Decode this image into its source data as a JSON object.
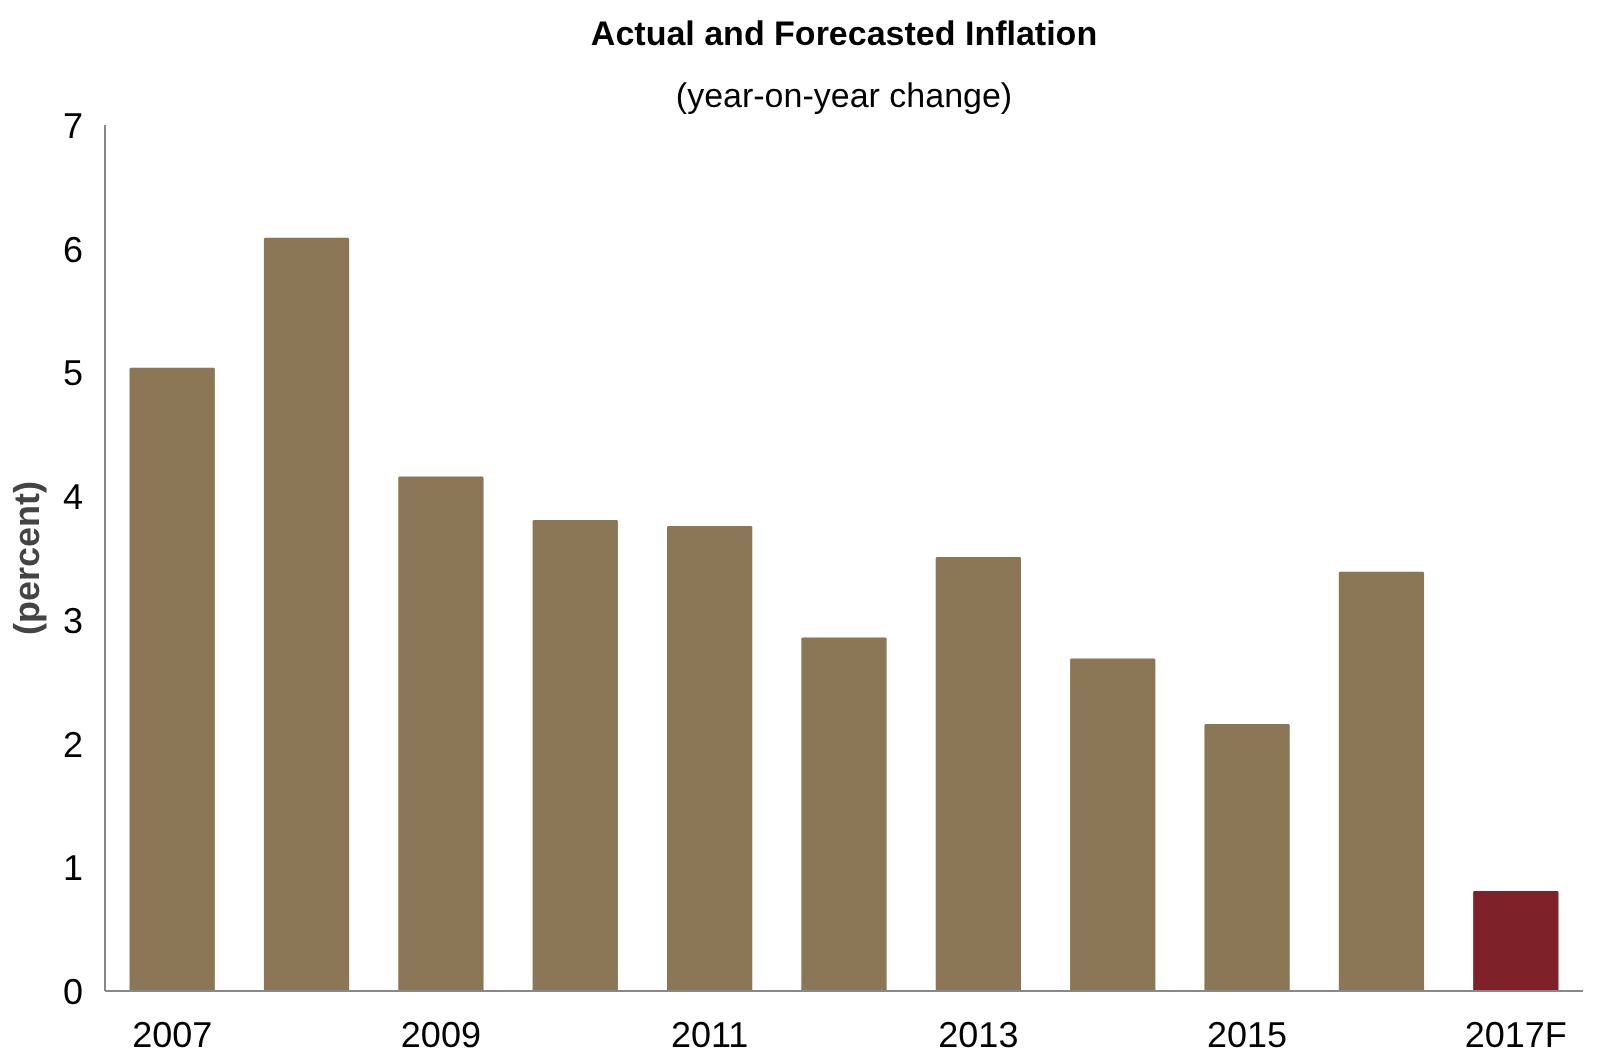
{
  "chart_data": {
    "type": "bar",
    "title": "Actual and Forecasted Inflation",
    "subtitle": "(year-on-year change)",
    "ylabel": "(percent)",
    "categories": [
      "2007",
      null,
      "2009",
      null,
      "2011",
      null,
      "2013",
      null,
      "2015",
      null,
      "2017F"
    ],
    "values": [
      5.03,
      6.08,
      4.15,
      3.8,
      3.75,
      2.85,
      3.5,
      2.68,
      2.15,
      3.38,
      0.8
    ],
    "colors": [
      "#8b7656",
      "#8b7656",
      "#8b7656",
      "#8b7656",
      "#8b7656",
      "#8b7656",
      "#8b7656",
      "#8b7656",
      "#8b7656",
      "#8b7656",
      "#7f2128"
    ],
    "ylim": [
      0,
      7
    ],
    "yticks": [
      0,
      1,
      2,
      3,
      4,
      5,
      6,
      7
    ],
    "grid": false
  }
}
